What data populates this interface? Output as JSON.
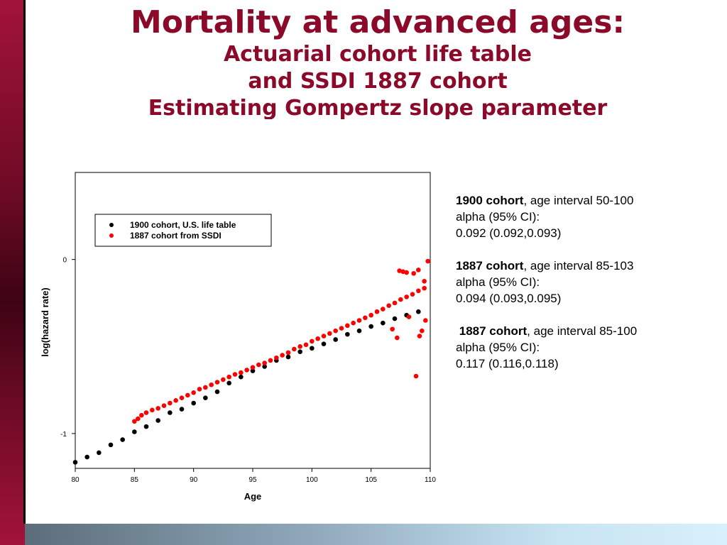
{
  "slide": {
    "title": "Mortality at advanced ages:",
    "subtitle_lines": [
      "Actuarial cohort life table",
      "and SSDI 1887 cohort",
      "Estimating Gompertz slope parameter"
    ]
  },
  "stats": [
    {
      "name": "1900 cohort",
      "interval": ", age interval 50-100",
      "alpha_label": "alpha (95% CI):",
      "value": "0.092 (0.092,0.093)"
    },
    {
      "name": "1887 cohort",
      "interval": ", age interval 85-103",
      "alpha_label": "alpha (95% CI):",
      "value": "0.094 (0.093,0.095)"
    },
    {
      "name": "1887 cohort",
      "interval": ", age interval 85-100",
      "alpha_label": "alpha (95% CI):",
      "value": "0.117 (0.116,0.118)"
    }
  ],
  "colors": {
    "title": "#8b0a2a",
    "series_black": "#000000",
    "series_red": "#ff0000"
  },
  "chart_data": {
    "type": "scatter",
    "xlabel": "Age",
    "ylabel": "log(hazard rate)",
    "xlim": [
      80,
      110
    ],
    "ylim": [
      -1.2,
      0.5
    ],
    "xticks": [
      80,
      85,
      90,
      95,
      100,
      105,
      110
    ],
    "yticks": [
      0,
      -1
    ],
    "legend_position": "top-left",
    "series": [
      {
        "name": "1900 cohort, U.S. life table",
        "color": "#000000",
        "points": [
          [
            80,
            -1.165
          ],
          [
            81,
            -1.135
          ],
          [
            82,
            -1.11
          ],
          [
            83,
            -1.065
          ],
          [
            84,
            -1.035
          ],
          [
            85,
            -0.99
          ],
          [
            86,
            -0.96
          ],
          [
            87,
            -0.925
          ],
          [
            88,
            -0.88
          ],
          [
            89,
            -0.86
          ],
          [
            90,
            -0.825
          ],
          [
            91,
            -0.795
          ],
          [
            92,
            -0.76
          ],
          [
            93,
            -0.71
          ],
          [
            94,
            -0.675
          ],
          [
            95,
            -0.64
          ],
          [
            96,
            -0.615
          ],
          [
            97,
            -0.58
          ],
          [
            98,
            -0.56
          ],
          [
            99,
            -0.53
          ],
          [
            100,
            -0.51
          ],
          [
            101,
            -0.485
          ],
          [
            102,
            -0.46
          ],
          [
            103,
            -0.43
          ],
          [
            104,
            -0.41
          ],
          [
            105,
            -0.385
          ],
          [
            106,
            -0.365
          ],
          [
            107,
            -0.34
          ],
          [
            108,
            -0.32
          ],
          [
            109,
            -0.3
          ]
        ]
      },
      {
        "name": "1887 cohort from SSDI",
        "color": "#ff0000",
        "points": [
          [
            85,
            -0.93
          ],
          [
            85.3,
            -0.915
          ],
          [
            85.6,
            -0.895
          ],
          [
            86,
            -0.88
          ],
          [
            86.5,
            -0.865
          ],
          [
            87,
            -0.855
          ],
          [
            87.5,
            -0.84
          ],
          [
            88,
            -0.825
          ],
          [
            88.5,
            -0.81
          ],
          [
            89,
            -0.795
          ],
          [
            89.5,
            -0.78
          ],
          [
            90,
            -0.765
          ],
          [
            90.5,
            -0.745
          ],
          [
            91,
            -0.735
          ],
          [
            91.5,
            -0.72
          ],
          [
            92,
            -0.705
          ],
          [
            92.5,
            -0.69
          ],
          [
            93,
            -0.675
          ],
          [
            93.5,
            -0.66
          ],
          [
            94,
            -0.65
          ],
          [
            94.5,
            -0.635
          ],
          [
            95,
            -0.62
          ],
          [
            95.5,
            -0.605
          ],
          [
            96,
            -0.595
          ],
          [
            96.5,
            -0.58
          ],
          [
            97,
            -0.565
          ],
          [
            97.5,
            -0.55
          ],
          [
            98,
            -0.535
          ],
          [
            98.5,
            -0.515
          ],
          [
            99,
            -0.5
          ],
          [
            99.5,
            -0.49
          ],
          [
            100,
            -0.47
          ],
          [
            100.5,
            -0.455
          ],
          [
            101,
            -0.44
          ],
          [
            101.5,
            -0.425
          ],
          [
            102,
            -0.41
          ],
          [
            102.5,
            -0.395
          ],
          [
            103,
            -0.38
          ],
          [
            103.5,
            -0.365
          ],
          [
            104,
            -0.35
          ],
          [
            104.5,
            -0.335
          ],
          [
            105,
            -0.32
          ],
          [
            105.5,
            -0.3
          ],
          [
            106,
            -0.285
          ],
          [
            106.5,
            -0.265
          ],
          [
            107,
            -0.25
          ],
          [
            107.5,
            -0.23
          ],
          [
            108,
            -0.215
          ],
          [
            108.5,
            -0.2
          ],
          [
            109,
            -0.18
          ],
          [
            109.5,
            -0.165
          ],
          [
            107.4,
            -0.065
          ],
          [
            107.7,
            -0.07
          ],
          [
            108,
            -0.075
          ],
          [
            108.6,
            -0.08
          ],
          [
            109,
            -0.06
          ],
          [
            109.8,
            -0.01
          ],
          [
            109.5,
            -0.125
          ],
          [
            109.3,
            -0.41
          ],
          [
            107.2,
            -0.45
          ],
          [
            108.8,
            -0.67
          ],
          [
            109.1,
            -0.44
          ],
          [
            106.8,
            -0.4
          ],
          [
            108.2,
            -0.33
          ],
          [
            109.6,
            -0.35
          ]
        ]
      }
    ]
  }
}
